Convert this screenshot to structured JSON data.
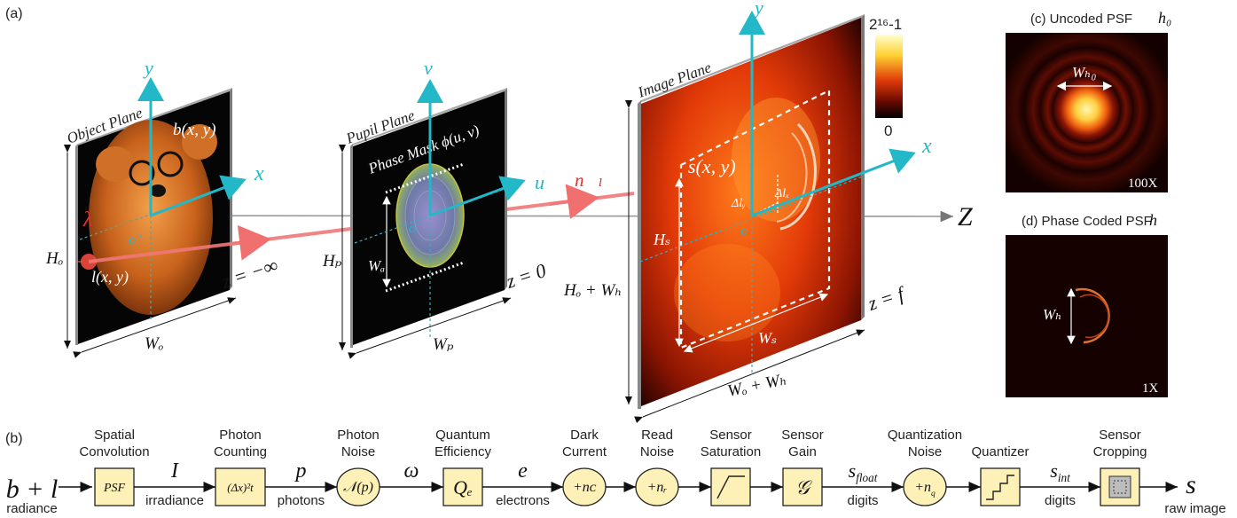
{
  "panel_labels": {
    "a": "(a)",
    "b": "(b)",
    "c": "(c) Uncoded PSF",
    "c_sym": "h₀",
    "d": "(d) Phase Coded PSF",
    "d_sym": "h"
  },
  "object_plane": {
    "title": "Object Plane",
    "b_label": "b(x, y)",
    "l_label": "l(x, y)",
    "lambda": "λ",
    "y_axis": "y",
    "x_axis": "x",
    "origin": "o''",
    "height": "Hₒ",
    "width": "Wₒ",
    "z": "z = −∞"
  },
  "pupil_plane": {
    "title": "Pupil Plane",
    "mask_label": "Phase Mask ϕ(u, v)",
    "v_axis": "v",
    "u_axis": "u",
    "origin": "o'",
    "aperture": "Wₐ",
    "height": "Hₚ",
    "width": "Wₚ",
    "z": "z = 0",
    "ray": "n⃗ₗ"
  },
  "image_plane": {
    "title": "Image Plane",
    "s_label": "s(x, y)",
    "dly": "Δlᵧ",
    "dlx": "Δlₓ",
    "origin": "o",
    "y_axis": "y",
    "x_axis": "x",
    "z_axis": "Z",
    "hs": "Hₛ",
    "ws": "Wₛ",
    "height": "Hₒ + Wₕ",
    "width": "Wₒ + Wₕ",
    "z": "z = f",
    "colorbar_max": "2¹⁶-1",
    "colorbar_min": "0"
  },
  "psf_c": {
    "width_label": "Wₕ₀",
    "zoom": "100X"
  },
  "psf_d": {
    "width_label": "Wₕ",
    "zoom": "1X"
  },
  "pipeline": {
    "input": "b + l",
    "input_sub": "radiance",
    "blocks": [
      {
        "top": "Spatial\nConvolution",
        "symbol": "PSF",
        "shape": "box"
      },
      {
        "top": "Photon\nCounting",
        "symbol": "(Δx)²t",
        "shape": "box"
      },
      {
        "top": "Photon\nNoise",
        "symbol": "𝒩(p)",
        "shape": "circle"
      },
      {
        "top": "Quantum\nEfficiency",
        "symbol": "Qₑ",
        "shape": "box"
      },
      {
        "top": "Dark\nCurrent",
        "symbol": "+nᴄ",
        "shape": "circle"
      },
      {
        "top": "Read\nNoise",
        "symbol": "+nᵣ",
        "shape": "circle"
      },
      {
        "top": "Sensor\nSaturation",
        "symbol": "",
        "shape": "box"
      },
      {
        "top": "Sensor\nGain",
        "symbol": "𝒢",
        "shape": "box"
      },
      {
        "top": "Quantization\nNoise",
        "symbol": "+n_q",
        "shape": "circle"
      },
      {
        "top": "Quantizer",
        "symbol": "",
        "shape": "box"
      },
      {
        "top": "Sensor\nCropping",
        "symbol": "",
        "shape": "box"
      }
    ],
    "links": [
      {
        "sym": "I",
        "sub": "irradiance"
      },
      {
        "sym": "p",
        "sub": "photons"
      },
      {
        "sym": "ω",
        "sub": ""
      },
      {
        "sym": "e",
        "sub": "electrons"
      },
      {
        "sym": "",
        "sub": ""
      },
      {
        "sym": "",
        "sub": ""
      },
      {
        "sym": "",
        "sub": ""
      },
      {
        "sym": "s_float",
        "sub": "digits"
      },
      {
        "sym": "",
        "sub": ""
      },
      {
        "sym": "s_int",
        "sub": "digits"
      }
    ],
    "output": "s",
    "output_sub": "raw image"
  }
}
